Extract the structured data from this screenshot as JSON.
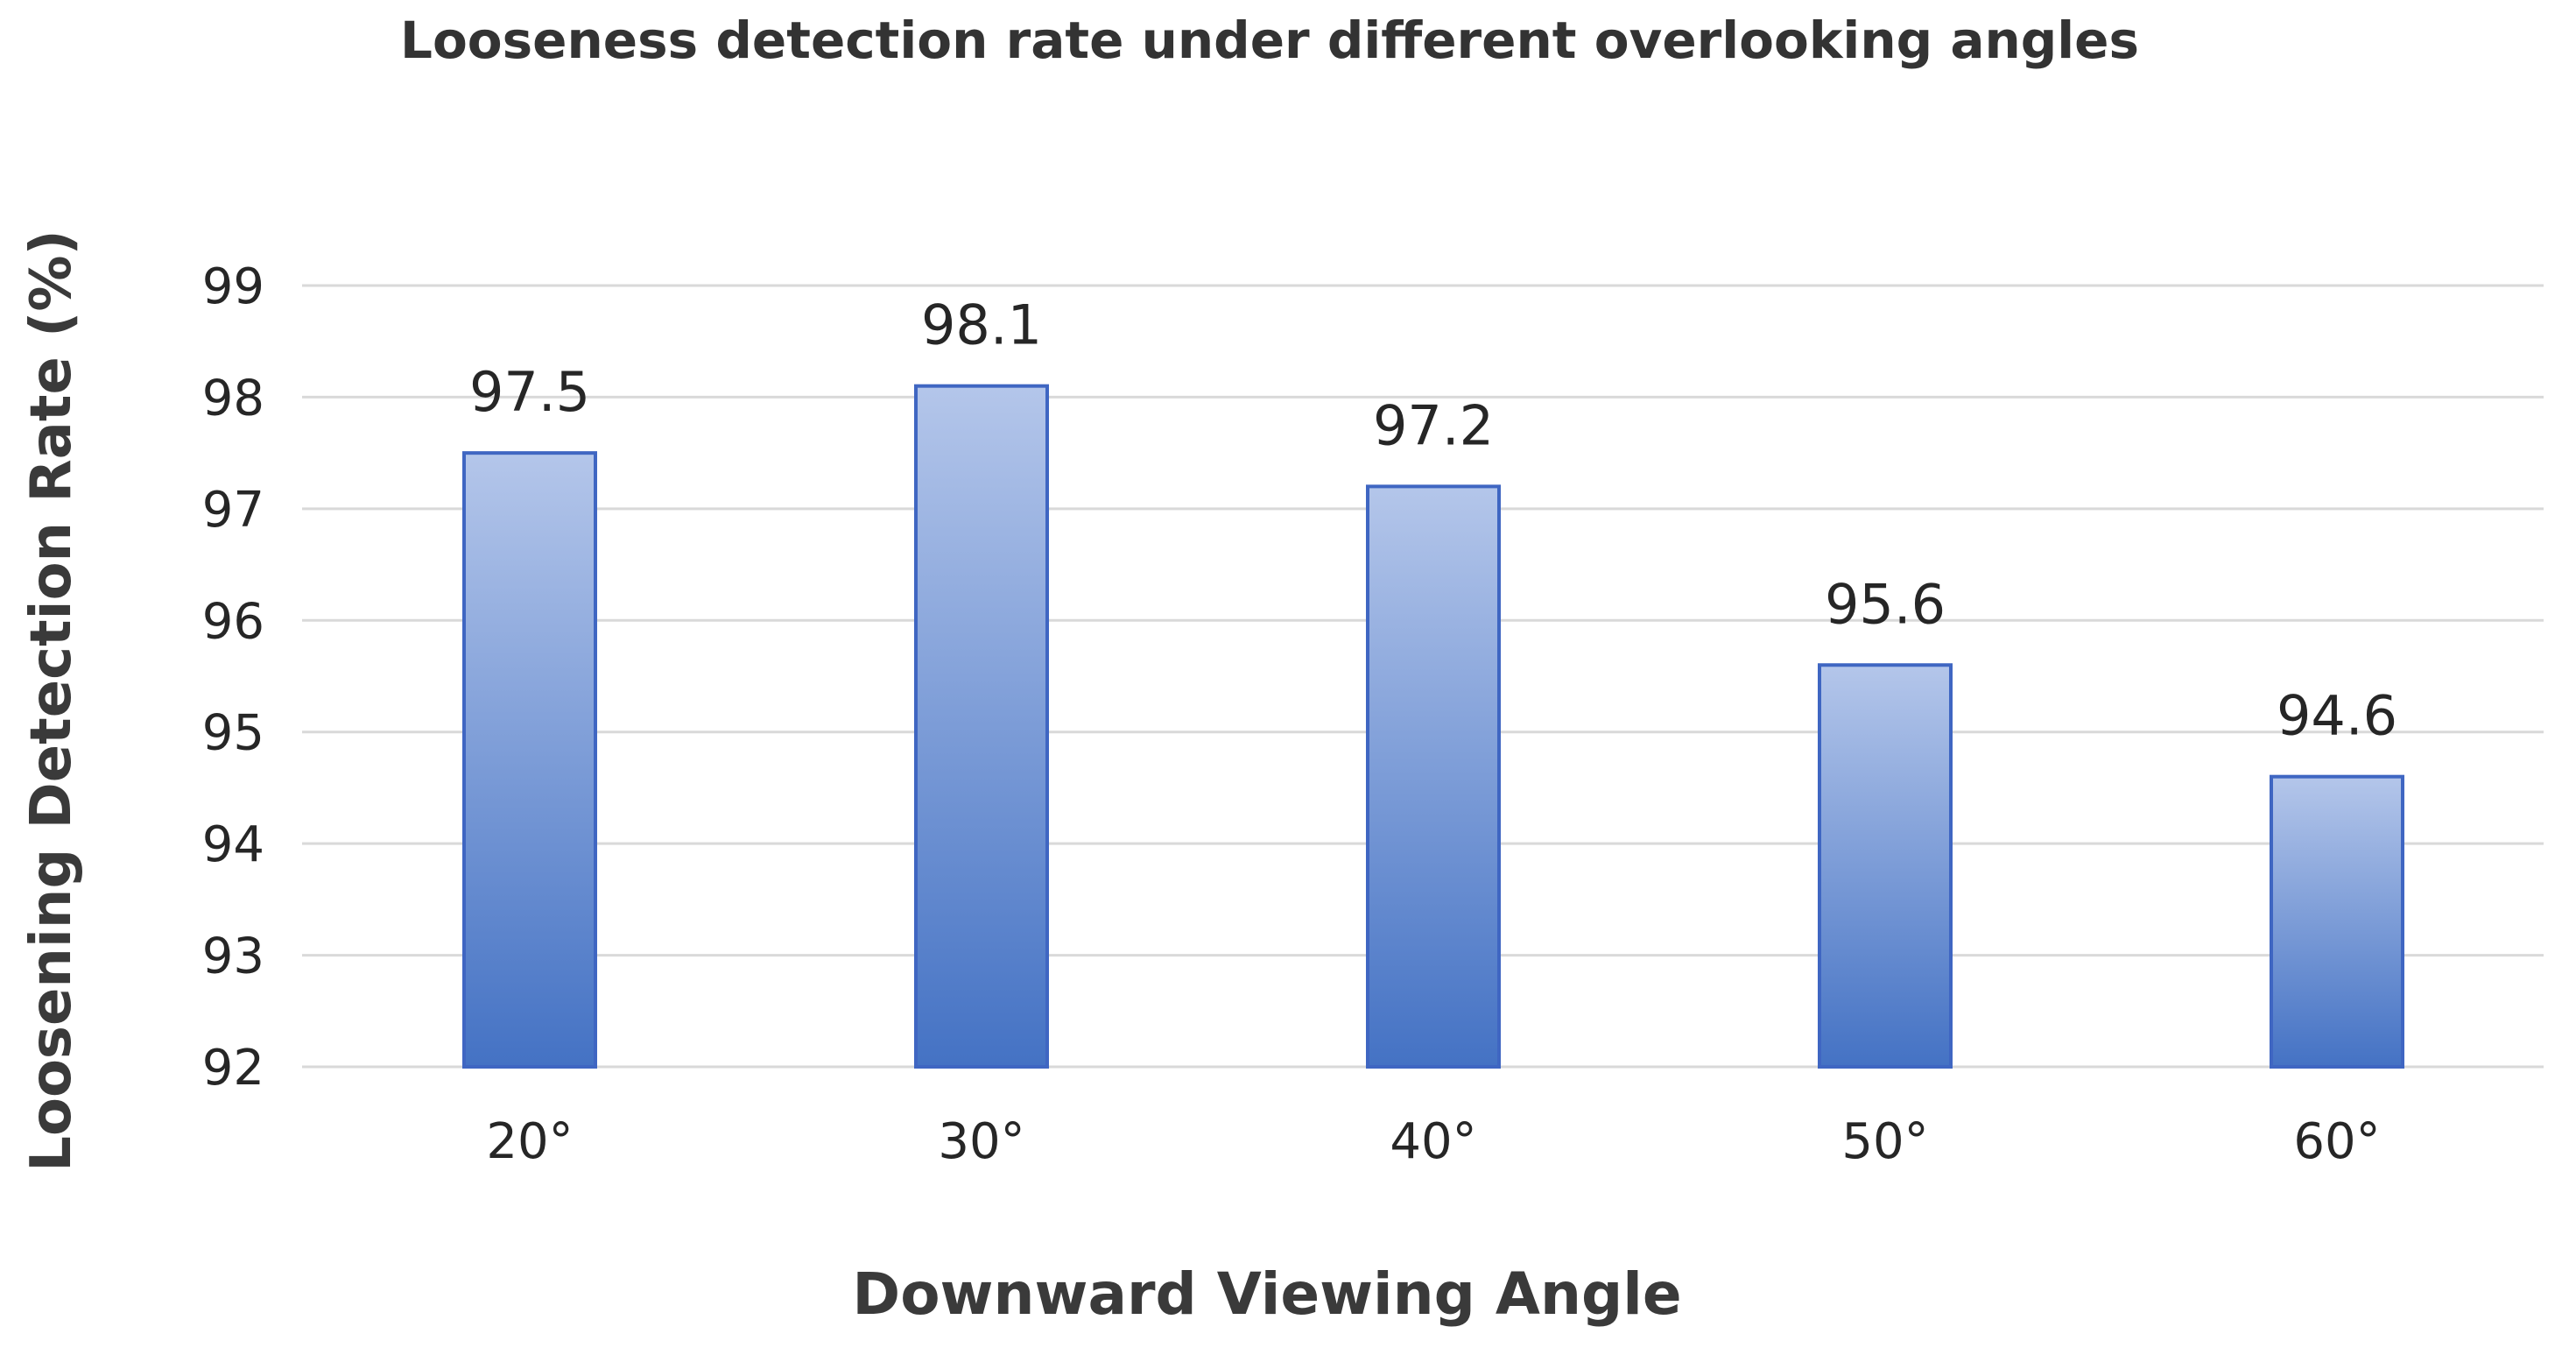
{
  "chart_data": {
    "type": "bar",
    "title": "Looseness detection rate under different overlooking angles",
    "xlabel": "Downward Viewing Angle",
    "ylabel": "Loosening Detection Rate  (%)",
    "categories": [
      "20°",
      "30°",
      "40°",
      "50°",
      "60°"
    ],
    "series": [
      {
        "name": "Loosening Detection Rate",
        "values": [
          97.5,
          98.1,
          97.2,
          95.6,
          94.6
        ]
      }
    ],
    "data_labels": [
      "97.5",
      "98.1",
      "97.2",
      "95.6",
      "94.6"
    ],
    "ylim": [
      92,
      99
    ],
    "yticks": [
      92,
      93,
      94,
      95,
      96,
      97,
      98,
      99
    ],
    "ytick_labels": [
      "92",
      "93",
      "94",
      "95",
      "96",
      "97",
      "98",
      "99"
    ],
    "grid": true,
    "legend": "none",
    "colors": {
      "bar_top": "#b4c6ea",
      "bar_bottom": "#4472c4",
      "bar_border": "#3f66c2",
      "grid": "#d9d9d9"
    }
  }
}
